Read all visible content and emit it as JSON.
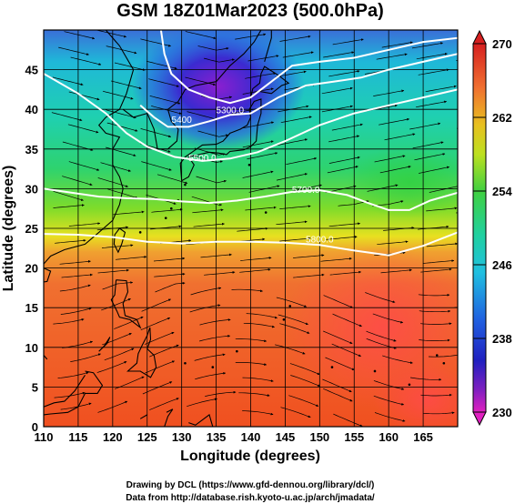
{
  "title": "GSM 18Z01Mar2023 (500.0hPa)",
  "xlabel": "Longitude (degrees)",
  "ylabel": "Latitude  (degrees)",
  "credits": [
    "Drawing by DCL (https://www.gfd-dennou.org/library/dcl/)",
    "Data from http://database.rish.kyoto-u.ac.jp/arch/jmadata/"
  ],
  "map": {
    "lon_range": [
      110,
      170
    ],
    "lat_range": [
      0,
      50
    ],
    "lon_ticks": [
      "110",
      "115",
      "120",
      "125",
      "130",
      "135",
      "140",
      "145",
      "150",
      "155",
      "160",
      "165"
    ],
    "lat_ticks": [
      "0",
      "5",
      "10",
      "15",
      "20",
      "25",
      "30",
      "35",
      "40",
      "45"
    ],
    "gridlines": true,
    "field": "temperature (color shading)",
    "vectors": "wind streamlines"
  },
  "colorbar": {
    "min": 230,
    "max": 270,
    "labels": [
      "270",
      "262",
      "254",
      "246",
      "238",
      "230"
    ]
  },
  "contours": [
    {
      "label": "5300.0",
      "lon": 137,
      "lat": 39.5
    },
    {
      "label": "5400",
      "lon": 130,
      "lat": 38.3
    },
    {
      "label": "5500.0",
      "lon": 133,
      "lat": 33.5
    },
    {
      "label": "5700.0",
      "lon": 148,
      "lat": 29.5
    },
    {
      "label": "5800.0",
      "lon": 150,
      "lat": 23.2
    }
  ],
  "colors": {
    "coast": "#000000",
    "contour": "#ffffff",
    "grid": "#000000"
  }
}
